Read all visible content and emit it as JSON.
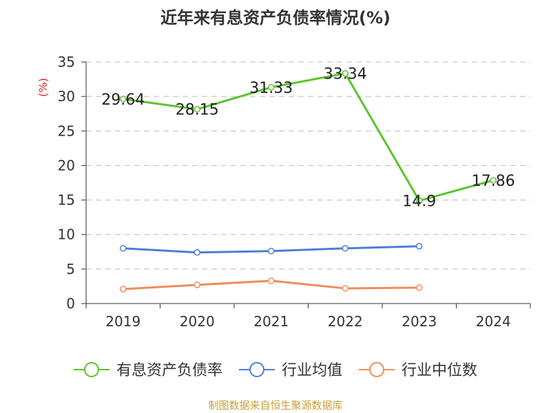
{
  "page": {
    "source": "制图数据来自恒生聚源数据库"
  },
  "chart_data": {
    "type": "line",
    "title": "近年来有息资产负债率情况(%)",
    "xlabel": "",
    "ylabel": "(%)",
    "ylabel_color": "#e02020",
    "categories": [
      "2019",
      "2020",
      "2021",
      "2022",
      "2023",
      "2024"
    ],
    "ylim": [
      0,
      35
    ],
    "yticks": [
      0,
      5,
      10,
      15,
      20,
      25,
      30,
      35
    ],
    "grid": true,
    "grid_style": "dashed horizontal",
    "legend_position": "bottom",
    "series": [
      {
        "name": "有息资产负债率",
        "color": "#5ac42a",
        "values": [
          29.64,
          28.15,
          31.33,
          33.34,
          14.9,
          17.86
        ],
        "data_labels": [
          "29.64",
          "28.15",
          "31.33",
          "33.34",
          "14.9",
          "17.86"
        ]
      },
      {
        "name": "行业均值",
        "color": "#4a7fd6",
        "values": [
          8.0,
          7.4,
          7.6,
          8.0,
          8.3,
          null
        ],
        "data_labels": []
      },
      {
        "name": "行业中位数",
        "color": "#f08c5a",
        "values": [
          2.1,
          2.7,
          3.3,
          2.2,
          2.3,
          null
        ],
        "data_labels": []
      }
    ]
  }
}
